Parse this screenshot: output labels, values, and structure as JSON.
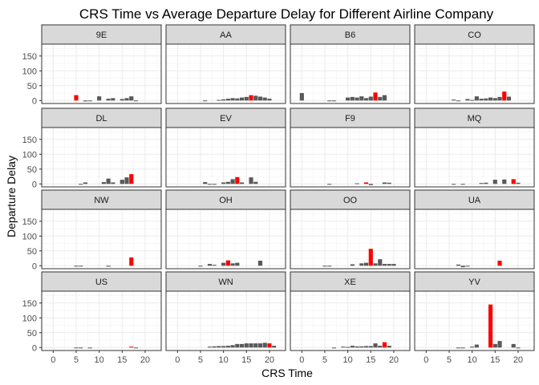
{
  "chart_data": {
    "type": "bar",
    "title": "CRS Time vs Average Departure Delay for Different Airline Company",
    "xlabel": "CRS Time",
    "ylabel": "Departure Delay",
    "xlim": [
      -2.5,
      23.5
    ],
    "ylim": [
      -10,
      190
    ],
    "x_ticks": [
      0,
      5,
      10,
      15,
      20
    ],
    "y_ticks": [
      0,
      50,
      100,
      150
    ],
    "grid": true,
    "colors": {
      "bar": "#595959",
      "highlight": "#ff0000",
      "strip_fill": "#d9d9d9"
    },
    "facets": [
      {
        "name": "9E",
        "highlight_x": 5,
        "x": [
          5,
          6,
          7,
          8,
          9,
          10,
          11,
          12,
          13,
          14,
          15,
          16,
          17,
          18,
          19,
          20,
          21
        ],
        "values": [
          18,
          0,
          -3,
          -1,
          0,
          14,
          0,
          6,
          8,
          0,
          5,
          8,
          14,
          -1,
          0,
          0,
          0
        ]
      },
      {
        "name": "AA",
        "highlight_x": 16,
        "x": [
          5,
          6,
          7,
          8,
          9,
          10,
          11,
          12,
          13,
          14,
          15,
          16,
          17,
          18,
          19,
          20,
          21
        ],
        "values": [
          0,
          -2,
          0,
          0,
          2,
          4,
          6,
          8,
          7,
          10,
          12,
          18,
          16,
          13,
          10,
          6,
          0
        ]
      },
      {
        "name": "B6",
        "highlight_x": 16,
        "x": [
          0,
          1,
          2,
          3,
          4,
          5,
          6,
          7,
          8,
          9,
          10,
          11,
          12,
          13,
          14,
          15,
          16,
          17,
          18,
          19,
          20,
          21,
          22
        ],
        "values": [
          25,
          0,
          0,
          0,
          0,
          0,
          -2,
          -2,
          0,
          0,
          10,
          12,
          10,
          14,
          8,
          13,
          27,
          12,
          18,
          0,
          0,
          0,
          0
        ]
      },
      {
        "name": "CO",
        "highlight_x": 17,
        "x": [
          5,
          6,
          7,
          8,
          9,
          10,
          11,
          12,
          13,
          14,
          15,
          16,
          17,
          18,
          19,
          20,
          21
        ],
        "values": [
          0,
          3,
          -2,
          0,
          5,
          2,
          14,
          6,
          7,
          10,
          8,
          12,
          30,
          13,
          0,
          0,
          0
        ]
      },
      {
        "name": "DL",
        "highlight_x": 17,
        "x": [
          5,
          6,
          7,
          8,
          9,
          10,
          11,
          12,
          13,
          14,
          15,
          16,
          17,
          18,
          19,
          20,
          21
        ],
        "values": [
          0,
          -2,
          5,
          0,
          0,
          0,
          6,
          18,
          5,
          0,
          14,
          22,
          33,
          0,
          0,
          0,
          0
        ]
      },
      {
        "name": "EV",
        "highlight_x": 13,
        "x": [
          6,
          7,
          8,
          9,
          10,
          11,
          12,
          13,
          14,
          15,
          16,
          17,
          18,
          19,
          20
        ],
        "values": [
          6,
          -2,
          -2,
          0,
          5,
          7,
          16,
          23,
          5,
          0,
          22,
          7,
          0,
          0,
          0
        ]
      },
      {
        "name": "F9",
        "highlight_x": 14,
        "x": [
          6,
          7,
          8,
          9,
          10,
          11,
          12,
          13,
          14,
          15,
          16,
          17,
          18,
          19,
          20,
          21
        ],
        "values": [
          -2,
          0,
          0,
          0,
          0,
          0,
          2,
          0,
          5,
          -4,
          0,
          0,
          5,
          4,
          0,
          0
        ]
      },
      {
        "name": "MQ",
        "highlight_x": 19,
        "x": [
          6,
          7,
          8,
          9,
          10,
          11,
          12,
          13,
          14,
          15,
          16,
          17,
          18,
          19,
          20,
          21
        ],
        "values": [
          -2,
          0,
          -2,
          0,
          0,
          0,
          3,
          4,
          0,
          14,
          0,
          15,
          0,
          16,
          4,
          0
        ]
      },
      {
        "name": "NW",
        "highlight_x": 17,
        "x": [
          5,
          6,
          7,
          8,
          9,
          10,
          11,
          12,
          13,
          14,
          15,
          16,
          17,
          18,
          19,
          20,
          21
        ],
        "values": [
          -2,
          -2,
          0,
          0,
          0,
          0,
          0,
          -3,
          0,
          0,
          0,
          0,
          28,
          0,
          0,
          0,
          0
        ]
      },
      {
        "name": "OH",
        "highlight_x": 11,
        "x": [
          5,
          6,
          7,
          8,
          9,
          10,
          11,
          12,
          13,
          14,
          15,
          16,
          17,
          18,
          19,
          20,
          21
        ],
        "values": [
          -2,
          0,
          6,
          3,
          0,
          10,
          18,
          8,
          10,
          0,
          0,
          0,
          0,
          17,
          0,
          0,
          0
        ]
      },
      {
        "name": "OO",
        "highlight_x": 15,
        "x": [
          5,
          6,
          7,
          8,
          9,
          10,
          11,
          12,
          13,
          14,
          15,
          16,
          17,
          18,
          19,
          20,
          21
        ],
        "values": [
          -2,
          -2,
          0,
          0,
          0,
          0,
          5,
          0,
          8,
          10,
          57,
          8,
          22,
          6,
          6,
          6,
          0
        ]
      },
      {
        "name": "UA",
        "highlight_x": 16,
        "x": [
          5,
          6,
          7,
          8,
          9,
          10,
          11,
          12,
          13,
          14,
          15,
          16,
          17,
          18,
          19,
          20,
          21
        ],
        "values": [
          0,
          0,
          4,
          -5,
          -2,
          0,
          0,
          0,
          0,
          0,
          0,
          17,
          0,
          0,
          0,
          0,
          0
        ]
      },
      {
        "name": "US",
        "highlight_x": 17,
        "x": [
          5,
          6,
          7,
          8,
          9,
          10,
          11,
          12,
          13,
          14,
          15,
          16,
          17,
          18,
          19,
          20,
          21
        ],
        "values": [
          -2,
          -2,
          0,
          -1,
          0,
          0,
          0,
          0,
          0,
          0,
          0,
          0,
          3,
          -2,
          0,
          0,
          0
        ]
      },
      {
        "name": "WN",
        "highlight_x": 20,
        "x": [
          7,
          8,
          9,
          10,
          11,
          12,
          13,
          14,
          15,
          16,
          17,
          18,
          19,
          20,
          21
        ],
        "values": [
          3,
          4,
          5,
          5,
          6,
          8,
          12,
          12,
          14,
          14,
          14,
          14,
          16,
          14,
          6
        ]
      },
      {
        "name": "XE",
        "highlight_x": 18,
        "x": [
          6,
          7,
          8,
          9,
          10,
          11,
          12,
          13,
          14,
          15,
          16,
          17,
          18,
          19,
          20,
          21
        ],
        "values": [
          0,
          -1,
          0,
          3,
          2,
          6,
          4,
          4,
          5,
          5,
          14,
          6,
          18,
          6,
          0,
          0
        ]
      },
      {
        "name": "YV",
        "highlight_x": 14,
        "x": [
          7,
          8,
          9,
          10,
          11,
          12,
          13,
          14,
          15,
          16,
          17,
          18,
          19,
          20,
          21
        ],
        "values": [
          -2,
          -2,
          0,
          3,
          10,
          0,
          0,
          145,
          12,
          22,
          0,
          0,
          12,
          -2,
          0
        ]
      }
    ]
  }
}
